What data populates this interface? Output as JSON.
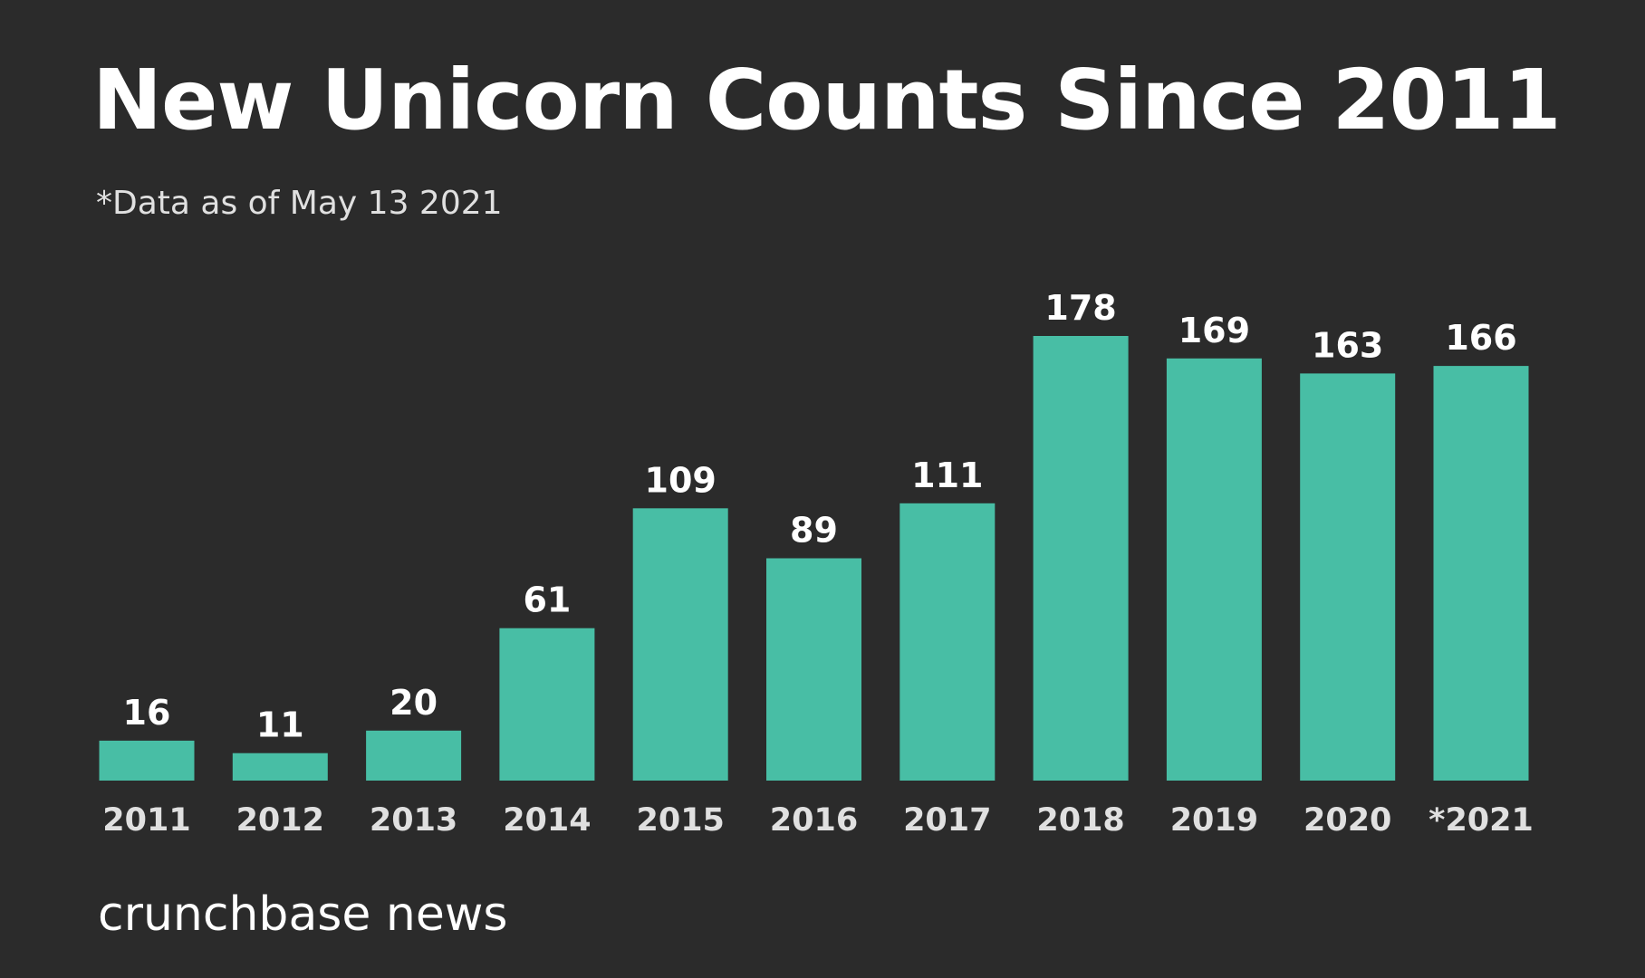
{
  "title": "New Unicorn Counts Since 2011",
  "subtitle": "*Data as of May 13 2021",
  "brand": "crunchbase news",
  "colors": {
    "background": "#2b2b2b",
    "bar": "#48bea5",
    "value_label": "#ffffff",
    "tick_label": "#e0e0e0"
  },
  "chart_data": {
    "type": "bar",
    "title": "New Unicorn Counts Since 2011",
    "subtitle": "*Data as of May 13 2021",
    "xlabel": "",
    "ylabel": "",
    "categories": [
      "2011",
      "2012",
      "2013",
      "2014",
      "2015",
      "2016",
      "2017",
      "2018",
      "2019",
      "2020",
      "*2021"
    ],
    "values": [
      16,
      11,
      20,
      61,
      109,
      89,
      111,
      178,
      169,
      163,
      166
    ],
    "data_labels": [
      "16",
      "11",
      "20",
      "61",
      "109",
      "89",
      "111",
      "178",
      "169",
      "163",
      "166"
    ],
    "ylim": [
      0,
      178
    ],
    "grid": false,
    "legend": "none"
  }
}
